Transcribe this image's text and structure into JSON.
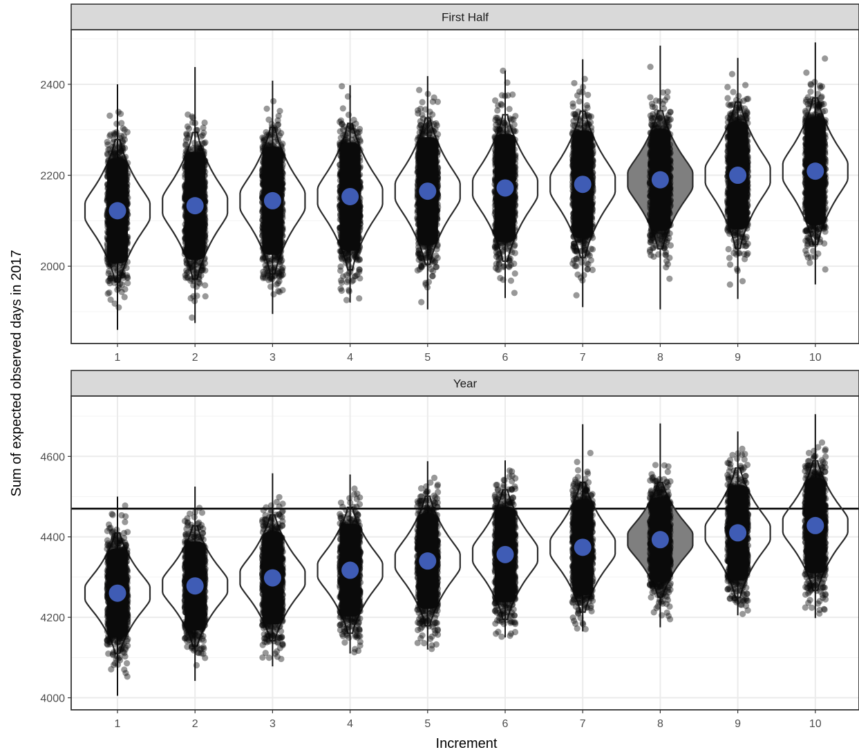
{
  "chart_data": {
    "type": "violin",
    "ylabel": "Sum of expected observed days in 2017",
    "xlabel": "Increment",
    "categories": [
      "1",
      "2",
      "3",
      "4",
      "5",
      "6",
      "7",
      "8",
      "9",
      "10"
    ],
    "highlight_category": "8",
    "colors": {
      "point_cloud": "#0a0a0a",
      "mean_dot": "#3f5cb5",
      "violin_highlight": "#7f7f7f",
      "violin_default": "#ffffff",
      "strip_fill": "#d9d9d9",
      "grid": "#ebebeb"
    },
    "panels": [
      {
        "title": "First Half",
        "ylim": [
          1830,
          2520
        ],
        "yticks": [
          2000,
          2200,
          2400
        ],
        "mean": [
          2122,
          2133,
          2144,
          2153,
          2165,
          2172,
          2180,
          2190,
          2200,
          2209
        ],
        "min": [
          1860,
          1875,
          1895,
          1920,
          1905,
          1930,
          1910,
          1905,
          1928,
          1960
        ],
        "max": [
          2400,
          2438,
          2408,
          2398,
          2418,
          2430,
          2455,
          2485,
          2458,
          2492
        ],
        "spread_sd": [
          68,
          70,
          70,
          70,
          70,
          70,
          70,
          66,
          70,
          70
        ]
      },
      {
        "title": "Year",
        "ylim": [
          3970,
          4750
        ],
        "yticks": [
          4000,
          4200,
          4400,
          4600
        ],
        "reference_line": 4470,
        "mean": [
          4260,
          4278,
          4298,
          4317,
          4340,
          4356,
          4374,
          4393,
          4410,
          4428
        ],
        "min": [
          4005,
          4042,
          4078,
          4110,
          4120,
          4150,
          4165,
          4175,
          4205,
          4198
        ],
        "max": [
          4500,
          4525,
          4558,
          4555,
          4588,
          4590,
          4680,
          4682,
          4662,
          4705
        ],
        "spread_sd": [
          65,
          65,
          68,
          68,
          70,
          70,
          70,
          62,
          70,
          70
        ]
      }
    ]
  }
}
